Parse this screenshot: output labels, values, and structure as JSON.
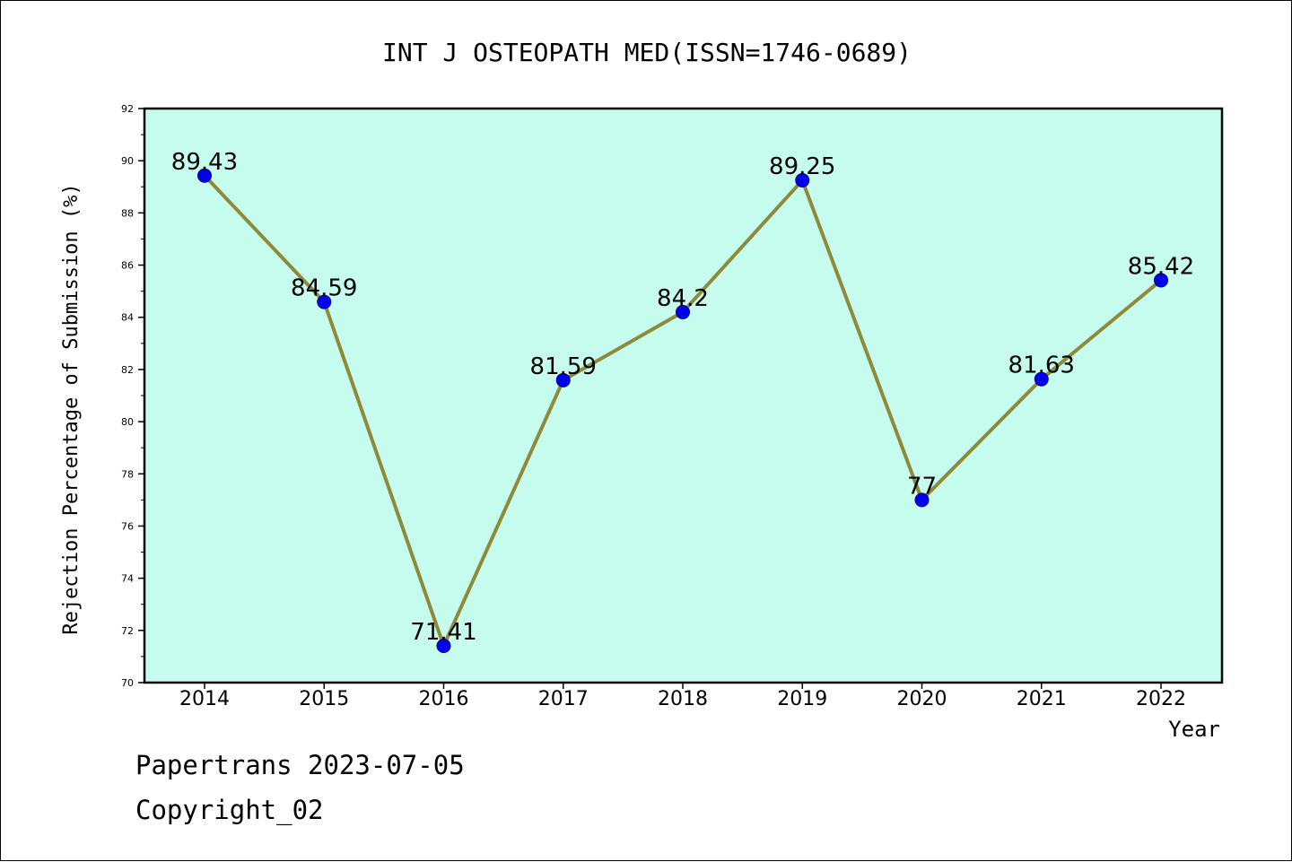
{
  "chart_data": {
    "type": "line",
    "title": "INT J OSTEOPATH MED(ISSN=1746-0689)",
    "xlabel": "Year",
    "ylabel": "Rejection Percentage of Submission (%)",
    "categories": [
      "2014",
      "2015",
      "2016",
      "2017",
      "2018",
      "2019",
      "2020",
      "2021",
      "2022"
    ],
    "values": [
      89.43,
      84.59,
      71.41,
      81.59,
      84.2,
      89.25,
      77,
      81.63,
      85.42
    ],
    "data_labels": [
      "89.43",
      "84.59",
      "71.41",
      "81.59",
      "84.2",
      "89.25",
      "77",
      "81.63",
      "85.42"
    ],
    "ylim": [
      70,
      92
    ],
    "yticks": [
      "70",
      "72",
      "74",
      "76",
      "78",
      "80",
      "82",
      "84",
      "86",
      "88",
      "90",
      "92"
    ],
    "grid": false,
    "colors": {
      "plot_background": "#c6fcee",
      "line": "#8f8a3a",
      "marker": "#0000ee"
    }
  },
  "footer": {
    "line1": "Papertrans 2023-07-05",
    "line2": "Copyright_02"
  }
}
